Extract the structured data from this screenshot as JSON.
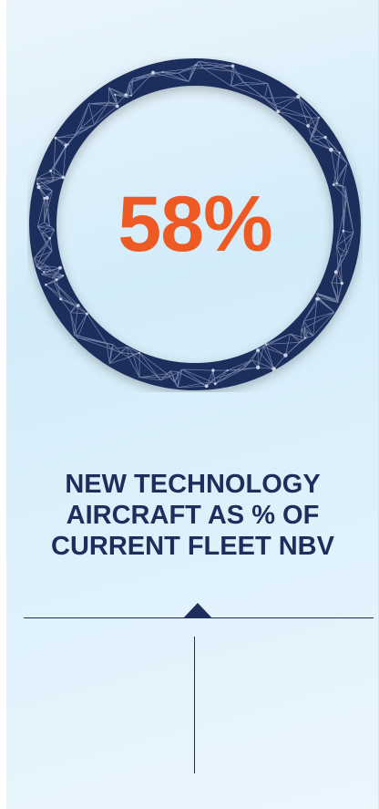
{
  "stat": {
    "value": "58%"
  },
  "caption": {
    "lines": [
      "NEW TECHNOLOGY",
      "AIRCRAFT AS % OF",
      "CURRENT FLEET NBV"
    ]
  },
  "colors": {
    "ring": "#1f2d5c",
    "accent": "#ed5a24",
    "text": "#1f2d5c",
    "background": "#d3ecf9"
  }
}
